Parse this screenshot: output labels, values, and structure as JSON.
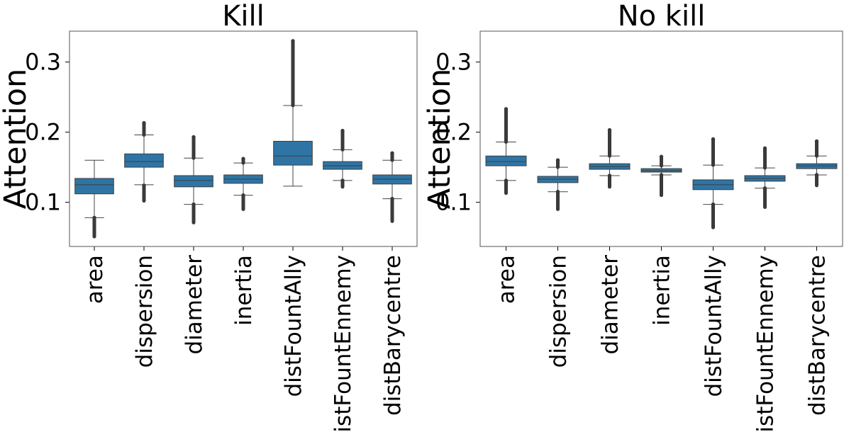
{
  "chart_data": [
    {
      "type": "box",
      "title": "Kill",
      "ylabel": "Attention",
      "ylim": [
        0.037,
        0.344
      ],
      "yticks": [
        0.1,
        0.2,
        0.3
      ],
      "ytick_labels": [
        "0.1",
        "0.2",
        "0.3"
      ],
      "categories": [
        "area",
        "dispersion",
        "diameter",
        "inertia",
        "distFountAlly",
        "distFountEnnemy",
        "distBarycentre"
      ],
      "grid": false,
      "box_color": "#2e75a6",
      "boxes": [
        {
          "whislo": 0.078,
          "q1": 0.112,
          "med": 0.125,
          "q3": 0.134,
          "whishi": 0.16,
          "fliers_low": [
            0.051,
            0.078
          ],
          "fliers_high": []
        },
        {
          "whislo": 0.125,
          "q1": 0.15,
          "med": 0.158,
          "q3": 0.169,
          "whishi": 0.196,
          "fliers_low": [
            0.102,
            0.124
          ],
          "fliers_high": [
            0.196,
            0.213
          ]
        },
        {
          "whislo": 0.097,
          "q1": 0.122,
          "med": 0.131,
          "q3": 0.138,
          "whishi": 0.163,
          "fliers_low": [
            0.071,
            0.097
          ],
          "fliers_high": [
            0.163,
            0.193
          ]
        },
        {
          "whislo": 0.11,
          "q1": 0.127,
          "med": 0.133,
          "q3": 0.139,
          "whishi": 0.156,
          "fliers_low": [
            0.09,
            0.11
          ],
          "fliers_high": [
            0.156,
            0.162
          ]
        },
        {
          "whislo": 0.123,
          "q1": 0.153,
          "med": 0.166,
          "q3": 0.187,
          "whishi": 0.238,
          "fliers_low": [],
          "fliers_high": [
            0.238,
            0.33
          ]
        },
        {
          "whislo": 0.131,
          "q1": 0.147,
          "med": 0.152,
          "q3": 0.158,
          "whishi": 0.175,
          "fliers_low": [
            0.122,
            0.131
          ],
          "fliers_high": [
            0.175,
            0.202
          ]
        },
        {
          "whislo": 0.105,
          "q1": 0.126,
          "med": 0.133,
          "q3": 0.139,
          "whishi": 0.16,
          "fliers_low": [
            0.073,
            0.105
          ],
          "fliers_high": [
            0.16,
            0.17
          ]
        }
      ]
    },
    {
      "type": "box",
      "title": "No kill",
      "ylabel": "Attention",
      "ylim": [
        0.037,
        0.344
      ],
      "yticks": [
        0.1,
        0.2,
        0.3
      ],
      "ytick_labels": [
        "0.1",
        "0.2",
        "0.3"
      ],
      "categories": [
        "area",
        "dispersion",
        "diameter",
        "inertia",
        "distFountAlly",
        "distFountEnnemy",
        "distBarycentre"
      ],
      "grid": false,
      "box_color": "#2e75a6",
      "boxes": [
        {
          "whislo": 0.131,
          "q1": 0.152,
          "med": 0.158,
          "q3": 0.166,
          "whishi": 0.186,
          "fliers_low": [
            0.113,
            0.131
          ],
          "fliers_high": [
            0.186,
            0.233
          ]
        },
        {
          "whislo": 0.115,
          "q1": 0.128,
          "med": 0.133,
          "q3": 0.137,
          "whishi": 0.15,
          "fliers_low": [
            0.09,
            0.115
          ],
          "fliers_high": [
            0.15,
            0.16
          ]
        },
        {
          "whislo": 0.138,
          "q1": 0.147,
          "med": 0.151,
          "q3": 0.155,
          "whishi": 0.166,
          "fliers_low": [
            0.122,
            0.138
          ],
          "fliers_high": [
            0.166,
            0.203
          ]
        },
        {
          "whislo": 0.139,
          "q1": 0.143,
          "med": 0.145,
          "q3": 0.148,
          "whishi": 0.152,
          "fliers_low": [
            0.11,
            0.139
          ],
          "fliers_high": [
            0.152,
            0.165
          ]
        },
        {
          "whislo": 0.097,
          "q1": 0.118,
          "med": 0.125,
          "q3": 0.132,
          "whishi": 0.153,
          "fliers_low": [
            0.064,
            0.097
          ],
          "fliers_high": [
            0.153,
            0.19
          ]
        },
        {
          "whislo": 0.12,
          "q1": 0.13,
          "med": 0.134,
          "q3": 0.138,
          "whishi": 0.149,
          "fliers_low": [
            0.093,
            0.12
          ],
          "fliers_high": [
            0.149,
            0.177
          ]
        },
        {
          "whislo": 0.139,
          "q1": 0.148,
          "med": 0.152,
          "q3": 0.155,
          "whishi": 0.166,
          "fliers_low": [
            0.124,
            0.139
          ],
          "fliers_high": [
            0.166,
            0.187
          ]
        }
      ]
    }
  ]
}
